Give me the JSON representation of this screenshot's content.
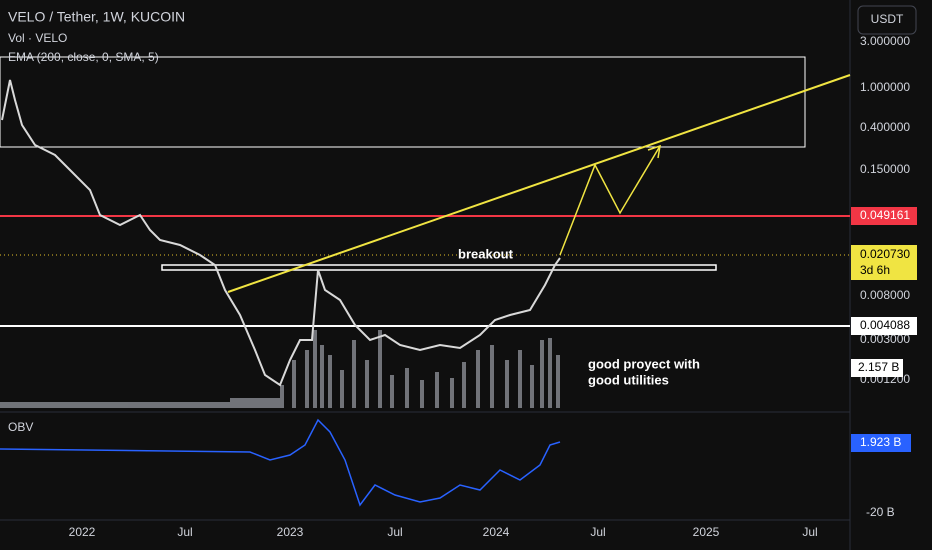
{
  "header": {
    "title": "VELO / Tether, 1W, KUCOIN",
    "volume": "Vol · VELO",
    "ema": "EMA (200, close, 0, SMA, 5)"
  },
  "currency_button": "USDT",
  "price_axis": [
    "3.000000",
    "1.000000",
    "0.400000",
    "0.150000",
    "0.008000",
    "0.003000",
    "0.001200"
  ],
  "price_badges": {
    "red": "0.049161",
    "current": "0.020730",
    "countdown": "3d 6h",
    "white": "0.004088",
    "volume": "2.157 B"
  },
  "obv": {
    "label": "OBV",
    "badge": "1.923 B",
    "axis": "-20 B"
  },
  "time_axis": [
    "2022",
    "Jul",
    "2023",
    "Jul",
    "2024",
    "Jul",
    "2025",
    "Jul"
  ],
  "annotations": {
    "breakout": "breakout",
    "note_line1": "good proyect with",
    "note_line2": "good utilities"
  }
}
